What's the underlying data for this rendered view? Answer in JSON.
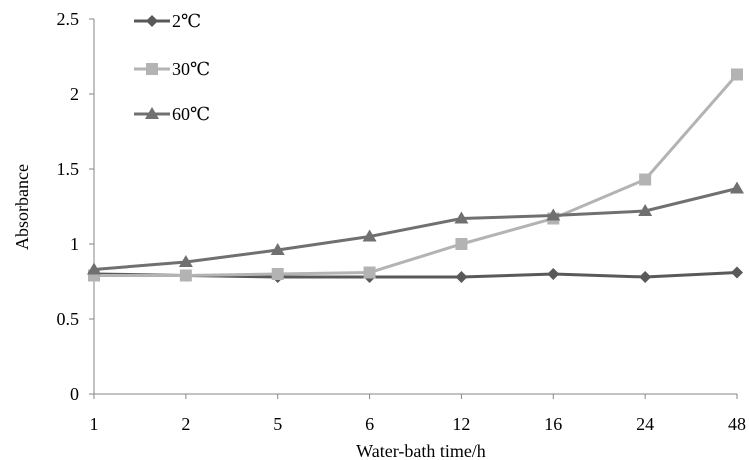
{
  "chart_data": {
    "type": "line",
    "title": "",
    "xlabel": "Water-bath time/h",
    "ylabel": "Absorbance",
    "categories": [
      "1",
      "2",
      "5",
      "6",
      "12",
      "16",
      "24",
      "48"
    ],
    "ylim": [
      0,
      2.5
    ],
    "yticks": [
      "0",
      "0.5",
      "1",
      "1.5",
      "2",
      "2.5"
    ],
    "grid": false,
    "legend_position": "top-left",
    "series": [
      {
        "name": "2℃",
        "marker": "diamond",
        "color": "#595959",
        "values": [
          0.8,
          0.79,
          0.78,
          0.78,
          0.78,
          0.8,
          0.78,
          0.81
        ]
      },
      {
        "name": "30℃",
        "marker": "square",
        "color": "#b3b3b3",
        "values": [
          0.79,
          0.79,
          0.8,
          0.81,
          1.0,
          1.17,
          1.43,
          2.13
        ]
      },
      {
        "name": "60℃",
        "marker": "triangle",
        "color": "#707070",
        "values": [
          0.83,
          0.88,
          0.96,
          1.05,
          1.17,
          1.19,
          1.22,
          1.37
        ]
      }
    ]
  }
}
